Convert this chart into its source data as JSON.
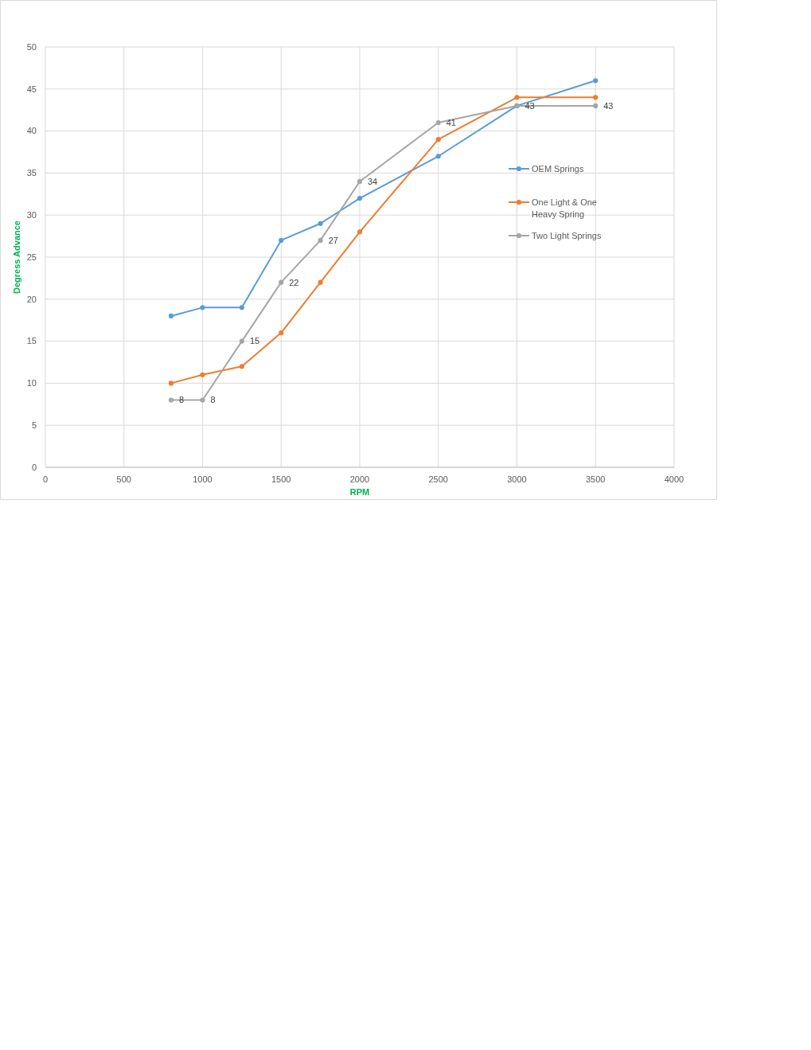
{
  "chart_data": {
    "type": "line",
    "xlabel": "RPM",
    "ylabel": "Degress Advance",
    "xlim": [
      0,
      4000
    ],
    "xticks": [
      0,
      500,
      1000,
      1500,
      2000,
      2500,
      3000,
      3500,
      4000
    ],
    "ylim": [
      0,
      50
    ],
    "yticks": [
      0,
      5,
      10,
      15,
      20,
      25,
      30,
      35,
      40,
      45,
      50
    ],
    "grid": true,
    "legend": "right",
    "marker": "circle",
    "line_style": "solid",
    "x": [
      800,
      1000,
      1250,
      1500,
      1750,
      2000,
      2500,
      3000,
      3500
    ],
    "series": [
      {
        "name": "OEM Springs",
        "color": "#5b9bd5",
        "values": [
          18,
          19,
          19,
          27,
          29,
          32,
          37,
          43,
          46
        ]
      },
      {
        "name": "One Light & One Heavy Spring",
        "color": "#ed7d31",
        "values": [
          10,
          11,
          12,
          16,
          22,
          28,
          39,
          44,
          44
        ]
      },
      {
        "name": "Two Light Springs",
        "color": "#a5a5a5",
        "values": [
          8,
          8,
          15,
          22,
          27,
          34,
          41,
          43,
          43
        ],
        "value_labels": [
          "8",
          "8",
          "15",
          "22",
          "27",
          "34",
          "41",
          "43",
          "43"
        ]
      }
    ]
  }
}
